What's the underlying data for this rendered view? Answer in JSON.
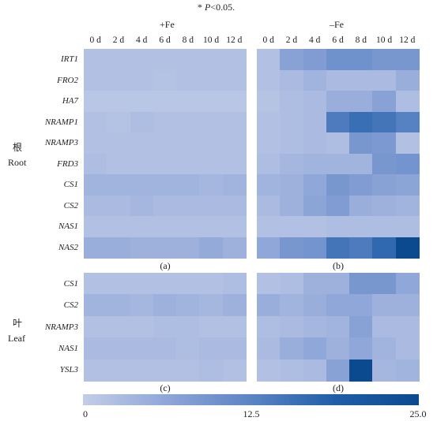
{
  "footnote": {
    "star": "*",
    "p_label": "P",
    "rest": "<0.05."
  },
  "conditions": {
    "plus_fe": "+Fe",
    "minus_fe": "–Fe"
  },
  "days": [
    "0 d",
    "2 d",
    "4 d",
    "6 d",
    "8 d",
    "10 d",
    "12 d"
  ],
  "organs": {
    "root_cn": "根",
    "root_en": "Root",
    "leaf_cn": "叶",
    "leaf_en": "Leaf"
  },
  "panel_labels": {
    "a": "(a)",
    "b": "(b)",
    "c": "(c)",
    "d": "(d)"
  },
  "colorbar": {
    "min_label": "0",
    "mid_label": "12.5",
    "max_label": "25.0",
    "min": 0,
    "max": 25,
    "colors": [
      "#c3cde8",
      "#8ea6d8",
      "#5b84c4",
      "#1f5ea7",
      "#0b4a8e"
    ]
  },
  "chart_data": [
    {
      "type": "heatmap",
      "panel": "(a)",
      "condition": "+Fe",
      "organ": "Root",
      "x": [
        "0 d",
        "2 d",
        "4 d",
        "6 d",
        "8 d",
        "10 d",
        "12 d"
      ],
      "y": [
        "IRT1",
        "FRO2",
        "HA7",
        "NRAMP1",
        "NRAMP3",
        "FRD3",
        "CS1",
        "CS2",
        "NAS1",
        "NAS2"
      ],
      "values": [
        [
          2.0,
          2.0,
          2.0,
          2.0,
          2.0,
          2.0,
          2.0
        ],
        [
          2.0,
          2.0,
          2.0,
          1.8,
          2.0,
          2.0,
          2.0
        ],
        [
          1.2,
          1.2,
          1.2,
          1.2,
          1.2,
          1.2,
          1.2
        ],
        [
          2.0,
          1.8,
          2.5,
          2.0,
          2.0,
          2.0,
          2.0
        ],
        [
          2.0,
          2.0,
          2.0,
          2.0,
          2.0,
          2.0,
          2.0
        ],
        [
          2.5,
          2.0,
          2.0,
          2.0,
          2.0,
          2.0,
          2.0
        ],
        [
          4.0,
          4.0,
          4.0,
          4.0,
          4.0,
          3.5,
          4.0
        ],
        [
          3.0,
          3.0,
          3.5,
          3.0,
          3.0,
          3.0,
          3.0
        ],
        [
          2.0,
          2.0,
          2.0,
          2.0,
          2.0,
          2.0,
          2.0
        ],
        [
          5.0,
          5.0,
          4.5,
          4.5,
          4.5,
          5.5,
          4.5
        ]
      ]
    },
    {
      "type": "heatmap",
      "panel": "(b)",
      "condition": "–Fe",
      "organ": "Root",
      "x": [
        "0 d",
        "2 d",
        "4 d",
        "6 d",
        "8 d",
        "10 d",
        "12 d"
      ],
      "y": [
        "IRT1",
        "FRO2",
        "HA7",
        "NRAMP1",
        "NRAMP3",
        "FRD3",
        "CS1",
        "CS2",
        "NAS1",
        "NAS2"
      ],
      "values": [
        [
          2.0,
          7.0,
          8.0,
          10.0,
          10.0,
          9.0,
          9.0
        ],
        [
          2.0,
          3.0,
          4.0,
          3.0,
          3.0,
          3.0,
          5.0
        ],
        [
          1.5,
          2.5,
          3.0,
          5.0,
          5.0,
          7.0,
          2.5
        ],
        [
          2.0,
          2.5,
          3.0,
          14.0,
          16.0,
          15.0,
          13.0
        ],
        [
          2.0,
          2.5,
          3.0,
          2.5,
          9.0,
          8.5,
          2.0
        ],
        [
          2.5,
          3.5,
          4.0,
          4.0,
          4.0,
          9.0,
          9.5
        ],
        [
          4.0,
          4.5,
          6.0,
          9.0,
          8.0,
          7.0,
          6.5
        ],
        [
          3.0,
          4.5,
          6.5,
          8.0,
          5.0,
          4.5,
          4.0
        ],
        [
          2.0,
          2.0,
          2.0,
          2.5,
          2.5,
          2.5,
          2.5
        ],
        [
          6.0,
          9.0,
          9.5,
          15.0,
          14.0,
          17.0,
          25.0
        ]
      ]
    },
    {
      "type": "heatmap",
      "panel": "(c)",
      "condition": "+Fe",
      "organ": "Leaf",
      "x": [
        "0 d",
        "2 d",
        "4 d",
        "6 d",
        "8 d",
        "10 d",
        "12 d"
      ],
      "y": [
        "CS1",
        "CS2",
        "NRAMP3",
        "NAS1",
        "YSL3"
      ],
      "values": [
        [
          2.0,
          2.0,
          2.0,
          2.0,
          2.0,
          2.0,
          2.5
        ],
        [
          4.0,
          4.0,
          3.5,
          4.5,
          4.0,
          3.5,
          4.5
        ],
        [
          2.0,
          2.0,
          2.0,
          2.5,
          2.5,
          2.0,
          2.0
        ],
        [
          3.0,
          3.0,
          3.0,
          3.0,
          2.5,
          3.0,
          3.0
        ],
        [
          2.0,
          2.0,
          2.0,
          2.0,
          2.0,
          2.5,
          2.0
        ]
      ]
    },
    {
      "type": "heatmap",
      "panel": "(d)",
      "condition": "–Fe",
      "organ": "Leaf",
      "x": [
        "0 d",
        "2 d",
        "4 d",
        "6 d",
        "8 d",
        "10 d",
        "12 d"
      ],
      "y": [
        "CS1",
        "CS2",
        "NRAMP3",
        "NAS1",
        "YSL3"
      ],
      "values": [
        [
          2.0,
          2.5,
          4.5,
          4.5,
          9.0,
          9.0,
          6.0
        ],
        [
          5.0,
          4.0,
          5.0,
          6.0,
          6.0,
          4.5,
          4.5
        ],
        [
          2.5,
          3.0,
          3.5,
          4.0,
          7.0,
          3.0,
          3.0
        ],
        [
          3.0,
          5.0,
          6.0,
          4.5,
          6.0,
          4.0,
          3.0
        ],
        [
          2.0,
          2.5,
          3.0,
          7.0,
          25.0,
          3.5,
          4.0
        ]
      ]
    }
  ]
}
